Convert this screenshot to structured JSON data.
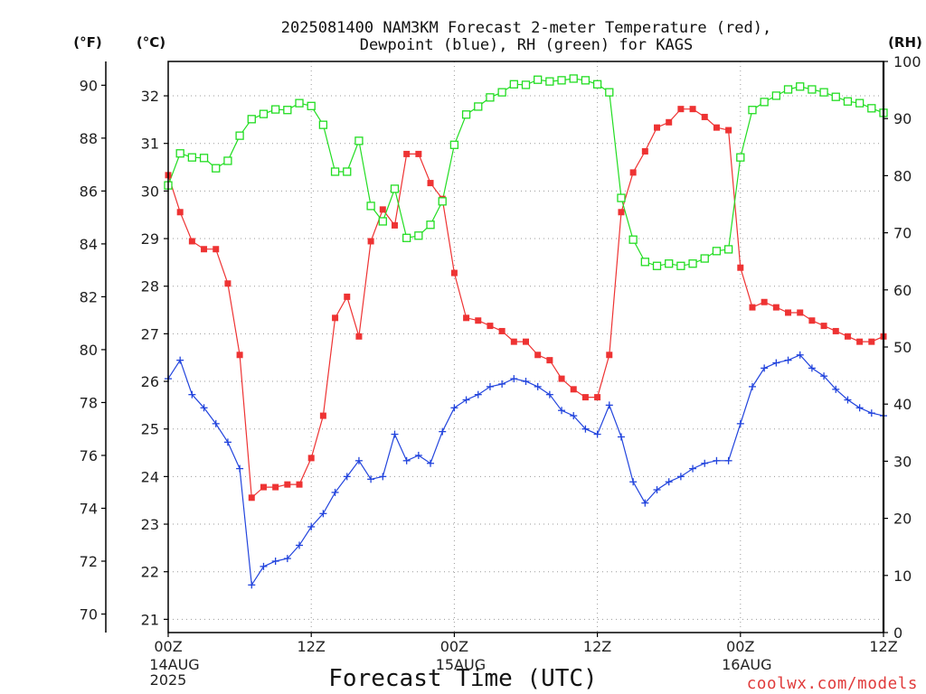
{
  "chart_data": {
    "type": "line",
    "title": [
      "2025081400 NAM3KM Forecast 2-meter Temperature (red),",
      "Dewpoint (blue), RH (green) for KAGS"
    ],
    "xlabel": "Forecast Time (UTC)",
    "ylabel_left_f": "(°F)",
    "ylabel_left_c": "(°C)",
    "ylabel_right": "(RH)",
    "grid": true,
    "ylim_f": [
      69.3,
      90.9
    ],
    "ylim_rh": [
      0,
      100
    ],
    "y_ticks_f": [
      70,
      72,
      74,
      76,
      78,
      80,
      82,
      84,
      86,
      88,
      90
    ],
    "y_ticks_c": [
      21,
      22,
      23,
      24,
      25,
      26,
      27,
      28,
      29,
      30,
      31,
      32
    ],
    "y_ticks_rh": [
      0,
      10,
      20,
      30,
      40,
      50,
      60,
      70,
      80,
      90,
      100
    ],
    "x_ticks": [
      {
        "label": "00Z",
        "at": "2025-08-14 00Z"
      },
      {
        "label": "12Z",
        "at": "2025-08-14 12Z"
      },
      {
        "label": "00Z",
        "at": "2025-08-15 00Z"
      },
      {
        "label": "12Z",
        "at": "2025-08-15 12Z"
      },
      {
        "label": "00Z",
        "at": "2025-08-16 00Z"
      },
      {
        "label": "12Z",
        "at": "2025-08-16 12Z"
      }
    ],
    "x_date_labels": [
      {
        "lines": [
          "14AUG",
          "2025"
        ],
        "at": "2025-08-14 00Z"
      },
      {
        "lines": [
          "15AUG"
        ],
        "at": "2025-08-15 00Z"
      },
      {
        "lines": [
          "16AUG"
        ],
        "at": "2025-08-16 00Z"
      }
    ],
    "x": [
      "2025-08-14 00Z",
      "2025-08-14 01Z",
      "2025-08-14 02Z",
      "2025-08-14 03Z",
      "2025-08-14 04Z",
      "2025-08-14 05Z",
      "2025-08-14 06Z",
      "2025-08-14 07Z",
      "2025-08-14 08Z",
      "2025-08-14 09Z",
      "2025-08-14 10Z",
      "2025-08-14 11Z",
      "2025-08-14 12Z",
      "2025-08-14 13Z",
      "2025-08-14 14Z",
      "2025-08-14 15Z",
      "2025-08-14 16Z",
      "2025-08-14 17Z",
      "2025-08-14 18Z",
      "2025-08-14 19Z",
      "2025-08-14 20Z",
      "2025-08-14 21Z",
      "2025-08-14 22Z",
      "2025-08-14 23Z",
      "2025-08-15 00Z",
      "2025-08-15 01Z",
      "2025-08-15 02Z",
      "2025-08-15 03Z",
      "2025-08-15 04Z",
      "2025-08-15 05Z",
      "2025-08-15 06Z",
      "2025-08-15 07Z",
      "2025-08-15 08Z",
      "2025-08-15 09Z",
      "2025-08-15 10Z",
      "2025-08-15 11Z",
      "2025-08-15 12Z",
      "2025-08-15 13Z",
      "2025-08-15 14Z",
      "2025-08-15 15Z",
      "2025-08-15 16Z",
      "2025-08-15 17Z",
      "2025-08-15 18Z",
      "2025-08-15 19Z",
      "2025-08-15 20Z",
      "2025-08-15 21Z",
      "2025-08-15 22Z",
      "2025-08-15 23Z",
      "2025-08-16 00Z",
      "2025-08-16 01Z",
      "2025-08-16 02Z",
      "2025-08-16 03Z",
      "2025-08-16 04Z",
      "2025-08-16 05Z",
      "2025-08-16 06Z",
      "2025-08-16 07Z",
      "2025-08-16 08Z",
      "2025-08-16 09Z",
      "2025-08-16 10Z",
      "2025-08-16 11Z",
      "2025-08-16 12Z"
    ],
    "series": [
      {
        "name": "Temperature",
        "axis": "F",
        "color": "#ee3333",
        "marker": "filled-square",
        "values": [
          86.6,
          85.2,
          84.1,
          83.8,
          83.8,
          82.5,
          79.8,
          74.4,
          74.8,
          74.8,
          74.9,
          74.9,
          75.9,
          77.5,
          81.2,
          82.0,
          80.5,
          84.1,
          85.3,
          84.7,
          87.4,
          87.4,
          86.3,
          85.7,
          82.9,
          81.2,
          81.1,
          80.9,
          80.7,
          80.3,
          80.3,
          79.8,
          79.6,
          78.9,
          78.5,
          78.2,
          78.2,
          79.8,
          85.2,
          86.7,
          87.5,
          88.4,
          88.6,
          89.1,
          89.1,
          88.8,
          88.4,
          88.3,
          83.1,
          81.6,
          81.8,
          81.6,
          81.4,
          81.4,
          81.1,
          80.9,
          80.7,
          80.5,
          80.3,
          80.3,
          80.5
        ]
      },
      {
        "name": "Dewpoint",
        "axis": "F",
        "color": "#2244dd",
        "marker": "plus",
        "values": [
          78.9,
          79.6,
          78.3,
          77.8,
          77.2,
          76.5,
          75.5,
          71.1,
          71.8,
          72.0,
          72.1,
          72.6,
          73.3,
          73.8,
          74.6,
          75.2,
          75.8,
          75.1,
          75.2,
          76.8,
          75.8,
          76.0,
          75.7,
          76.9,
          77.8,
          78.1,
          78.3,
          78.6,
          78.7,
          78.9,
          78.8,
          78.6,
          78.3,
          77.7,
          77.5,
          77.0,
          76.8,
          77.9,
          76.7,
          75.0,
          74.2,
          74.7,
          75.0,
          75.2,
          75.5,
          75.7,
          75.8,
          75.8,
          77.2,
          78.6,
          79.3,
          79.5,
          79.6,
          79.8,
          79.3,
          79.0,
          78.5,
          78.1,
          77.8,
          77.6,
          77.5
        ]
      },
      {
        "name": "RH",
        "axis": "RH",
        "color": "#22dd22",
        "marker": "open-square",
        "values": [
          78.3,
          83.9,
          83.2,
          83.1,
          81.3,
          82.6,
          87.0,
          89.9,
          90.8,
          91.6,
          91.5,
          92.7,
          92.2,
          88.9,
          80.7,
          80.7,
          86.1,
          74.7,
          72.0,
          77.7,
          69.1,
          69.5,
          71.4,
          75.5,
          85.4,
          90.7,
          92.1,
          93.7,
          94.6,
          96.0,
          95.9,
          96.8,
          96.5,
          96.7,
          97.0,
          96.7,
          96.0,
          94.6,
          76.1,
          68.8,
          64.9,
          64.2,
          64.6,
          64.2,
          64.6,
          65.5,
          66.8,
          67.1,
          83.2,
          91.5,
          92.9,
          94.0,
          95.1,
          95.6,
          95.1,
          94.6,
          93.8,
          93.0,
          92.7,
          91.8,
          91.0
        ]
      }
    ]
  },
  "credit": "coolwx.com/models"
}
